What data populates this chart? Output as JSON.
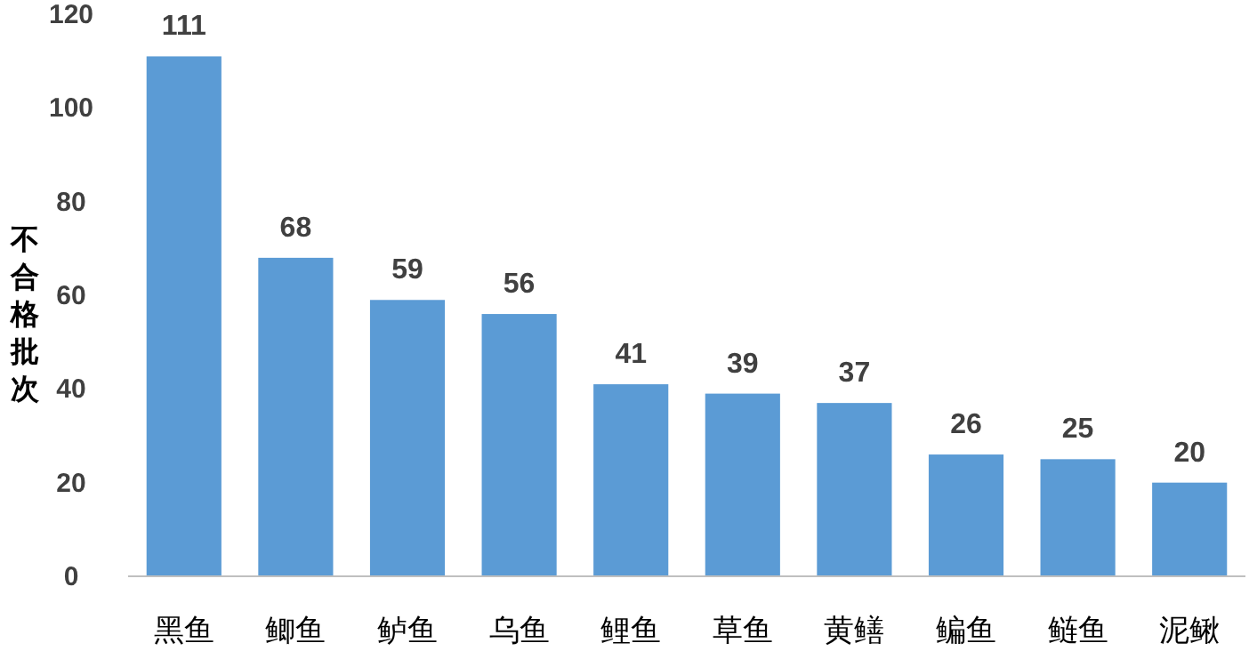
{
  "chart_data": {
    "type": "bar",
    "ylabel": "不合格批次",
    "categories": [
      "黑鱼",
      "鲫鱼",
      "鲈鱼",
      "乌鱼",
      "鲤鱼",
      "草鱼",
      "黄鳝",
      "鳊鱼",
      "鲢鱼",
      "泥鳅"
    ],
    "values": [
      111,
      68,
      59,
      56,
      41,
      39,
      37,
      26,
      25,
      20
    ],
    "color": "#5b9bd5",
    "ylim": [
      0,
      120
    ],
    "yticks": [
      0,
      20,
      40,
      60,
      80,
      100,
      120
    ],
    "data_labels": true,
    "grid": false
  }
}
